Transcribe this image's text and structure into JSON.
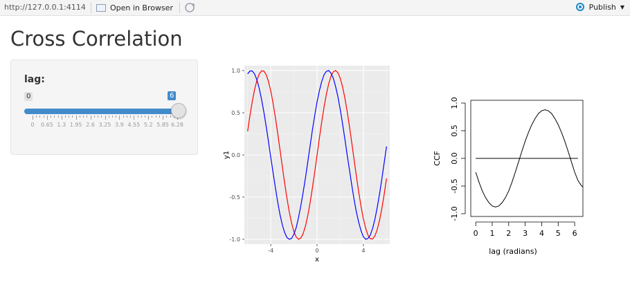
{
  "toolbar": {
    "url": "http://127.0.0.1:4114",
    "open_in_browser": "Open in Browser",
    "publish": "Publish"
  },
  "page_title": "Cross Correlation",
  "slider": {
    "label": "lag:",
    "min_label": "0",
    "value_label": "6",
    "min": 0,
    "max": 6.28,
    "value": 6,
    "tick_labels": [
      "0",
      "0.65",
      "1.3",
      "1.95",
      "2.6",
      "3.25",
      "3.9",
      "4.55",
      "5.2",
      "5.85",
      "6.28"
    ]
  },
  "colors": {
    "slider_accent": "#428bca",
    "sine": "#ff0000",
    "shifted": "#0000ff"
  },
  "chart_data": [
    {
      "type": "line",
      "xlabel": "x",
      "ylabel": "y1",
      "xlim": [
        -6.28,
        6.28
      ],
      "ylim": [
        -1.0,
        1.0
      ],
      "x_ticks": [
        -4,
        0,
        4
      ],
      "x_tick_labels": [
        "-4",
        "0",
        "4"
      ],
      "y_ticks": [
        -1.0,
        -0.5,
        0.0,
        0.5,
        1.0
      ],
      "y_tick_labels": [
        "-1.0",
        "-0.5",
        "0.0",
        "0.5",
        "1.0"
      ],
      "grid": true,
      "x": [
        -6.0,
        -5.8,
        -5.6,
        -5.4,
        -5.2,
        -5.0,
        -4.8,
        -4.6,
        -4.4,
        -4.2,
        -4.0,
        -3.8,
        -3.6,
        -3.4,
        -3.2,
        -3.0,
        -2.8,
        -2.6,
        -2.4,
        -2.2,
        -2.0,
        -1.8,
        -1.6,
        -1.4,
        -1.2,
        -1.0,
        -0.8,
        -0.6,
        -0.4,
        -0.2,
        0.0,
        0.2,
        0.4,
        0.6,
        0.8,
        1.0,
        1.2,
        1.4,
        1.6,
        1.8,
        2.0,
        2.2,
        2.4,
        2.6,
        2.8,
        3.0,
        3.2,
        3.4,
        3.6,
        3.8,
        4.0,
        4.2,
        4.4,
        4.6,
        4.8,
        5.0,
        5.2,
        5.4,
        5.6,
        5.8,
        6.0
      ],
      "series": [
        {
          "values": [
            0.279,
            0.465,
            0.632,
            0.773,
            0.883,
            0.959,
            0.996,
            0.994,
            0.952,
            0.872,
            0.757,
            0.612,
            0.443,
            0.256,
            0.058,
            -0.141,
            -0.335,
            -0.516,
            -0.675,
            -0.808,
            -0.909,
            -0.974,
            -1.0,
            -0.985,
            -0.932,
            -0.841,
            -0.717,
            -0.565,
            -0.389,
            -0.199,
            0.0,
            0.199,
            0.389,
            0.565,
            0.717,
            0.841,
            0.932,
            0.985,
            1.0,
            0.974,
            0.909,
            0.808,
            0.675,
            0.516,
            0.335,
            0.141,
            -0.058,
            -0.256,
            -0.443,
            -0.612,
            -0.757,
            -0.872,
            -0.952,
            -0.994,
            -0.996,
            -0.959,
            -0.883,
            -0.773,
            -0.632,
            -0.465,
            -0.279
          ]
        },
        {
          "values": [
            0.96,
            0.995,
            0.995,
            0.96,
            0.89,
            0.79,
            0.66,
            0.51,
            0.34,
            0.16,
            -0.03,
            -0.21,
            -0.39,
            -0.56,
            -0.71,
            -0.83,
            -0.92,
            -0.98,
            -1.0,
            -0.99,
            -0.94,
            -0.86,
            -0.74,
            -0.6,
            -0.44,
            -0.27,
            -0.08,
            0.11,
            0.3,
            0.47,
            0.63,
            0.76,
            0.87,
            0.95,
            0.99,
            1.0,
            0.97,
            0.91,
            0.81,
            0.69,
            0.54,
            0.37,
            0.19,
            0.0,
            -0.18,
            -0.36,
            -0.53,
            -0.68,
            -0.8,
            -0.9,
            -0.97,
            -1.0,
            -0.99,
            -0.95,
            -0.87,
            -0.76,
            -0.62,
            -0.46,
            -0.28,
            -0.09,
            0.1
          ]
        }
      ]
    },
    {
      "type": "line",
      "xlabel": "lag (radians)",
      "ylabel": "CCF",
      "xlim": [
        -0.3,
        6.5
      ],
      "ylim": [
        -1.05,
        1.05
      ],
      "x_ticks": [
        0,
        1,
        2,
        3,
        4,
        5,
        6
      ],
      "x_tick_labels": [
        "0",
        "1",
        "2",
        "3",
        "4",
        "5",
        "6"
      ],
      "y_ticks": [
        -1.0,
        -0.5,
        0.0,
        0.5,
        1.0
      ],
      "y_tick_labels": [
        "-1.0",
        "-0.5",
        "0.0",
        "0.5",
        "1.0"
      ],
      "grid": false,
      "x": [
        0.0,
        0.2,
        0.4,
        0.6,
        0.8,
        1.0,
        1.2,
        1.4,
        1.6,
        1.8,
        2.0,
        2.2,
        2.4,
        2.6,
        2.8,
        3.0,
        3.2,
        3.4,
        3.6,
        3.8,
        4.0,
        4.2,
        4.4,
        4.6,
        4.8,
        5.0,
        5.2,
        5.4,
        5.6,
        5.8,
        6.0,
        6.2,
        6.4,
        6.5
      ],
      "series": [
        {
          "values": [
            -0.25,
            -0.43,
            -0.59,
            -0.71,
            -0.8,
            -0.86,
            -0.88,
            -0.86,
            -0.8,
            -0.71,
            -0.59,
            -0.43,
            -0.25,
            -0.06,
            0.13,
            0.31,
            0.47,
            0.61,
            0.72,
            0.81,
            0.86,
            0.88,
            0.86,
            0.81,
            0.72,
            0.61,
            0.47,
            0.31,
            0.13,
            -0.06,
            -0.25,
            -0.4,
            -0.49,
            -0.52
          ]
        },
        {
          "x": [
            0.0,
            6.2
          ],
          "values": [
            0.0,
            0.0
          ]
        }
      ]
    }
  ]
}
